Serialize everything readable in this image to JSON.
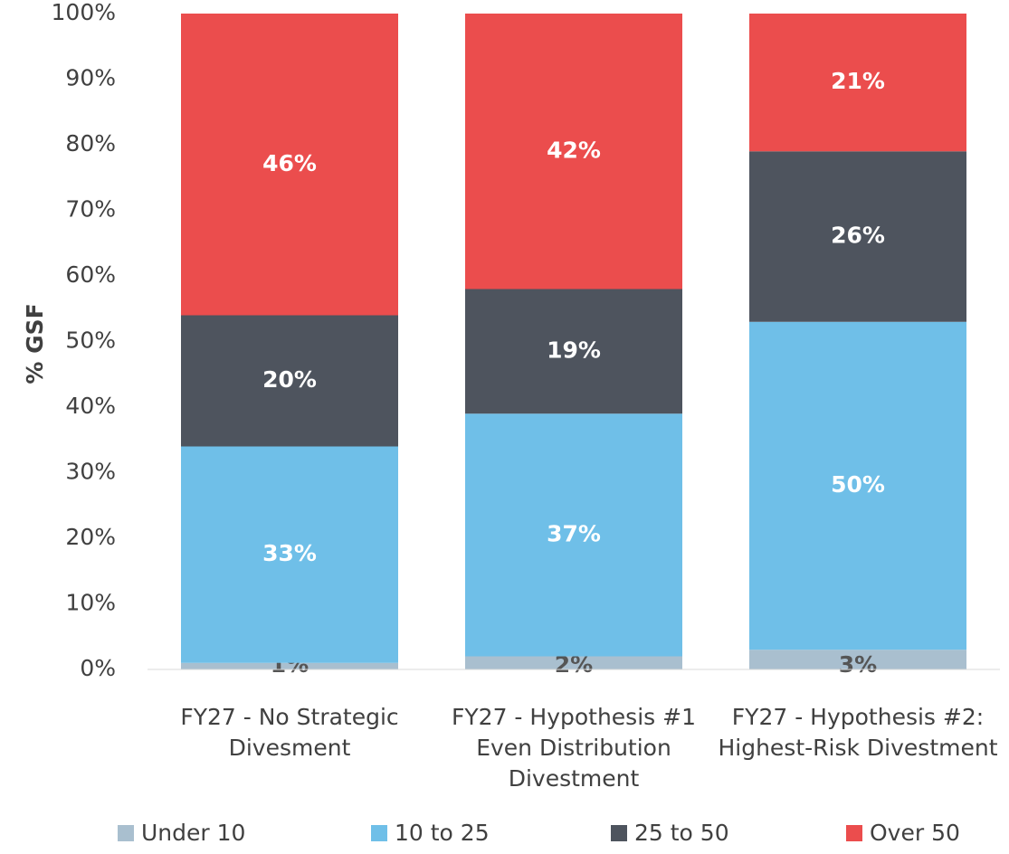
{
  "chart_data": {
    "type": "stacked_bar",
    "y_label": "% GSF",
    "categories": [
      "FY27 - No Strategic Divesment",
      "FY27 - Hypothesis #1 Even Distribution Divestment",
      "FY27 - Hypothesis #2: Highest-Risk Divestment"
    ],
    "series": [
      {
        "name": "Under 10",
        "color": "#a9bfcf",
        "values": [
          1,
          2,
          3
        ],
        "value_labels": [
          "1%",
          "2%",
          "3%"
        ]
      },
      {
        "name": "10 to 25",
        "color": "#6fbfe8",
        "values": [
          33,
          37,
          50
        ],
        "value_labels": [
          "33%",
          "37%",
          "50%"
        ]
      },
      {
        "name": "25 to 50",
        "color": "#4e545e",
        "values": [
          20,
          19,
          26
        ],
        "value_labels": [
          "20%",
          "19%",
          "26%"
        ]
      },
      {
        "name": "Over 50",
        "color": "#eb4d4d",
        "values": [
          46,
          42,
          21
        ],
        "value_labels": [
          "46%",
          "42%",
          "21%"
        ]
      }
    ],
    "ylim": [
      0,
      100
    ],
    "yticks": [
      {
        "value": 0,
        "label": "0%"
      },
      {
        "value": 10,
        "label": "10%"
      },
      {
        "value": 20,
        "label": "20%"
      },
      {
        "value": 30,
        "label": "30%"
      },
      {
        "value": 40,
        "label": "40%"
      },
      {
        "value": 50,
        "label": "50%"
      },
      {
        "value": 60,
        "label": "60%"
      },
      {
        "value": 70,
        "label": "70%"
      },
      {
        "value": 80,
        "label": "80%"
      },
      {
        "value": 90,
        "label": "90%"
      },
      {
        "value": 100,
        "label": "100%"
      }
    ],
    "grid": false,
    "legend": "bottom"
  }
}
